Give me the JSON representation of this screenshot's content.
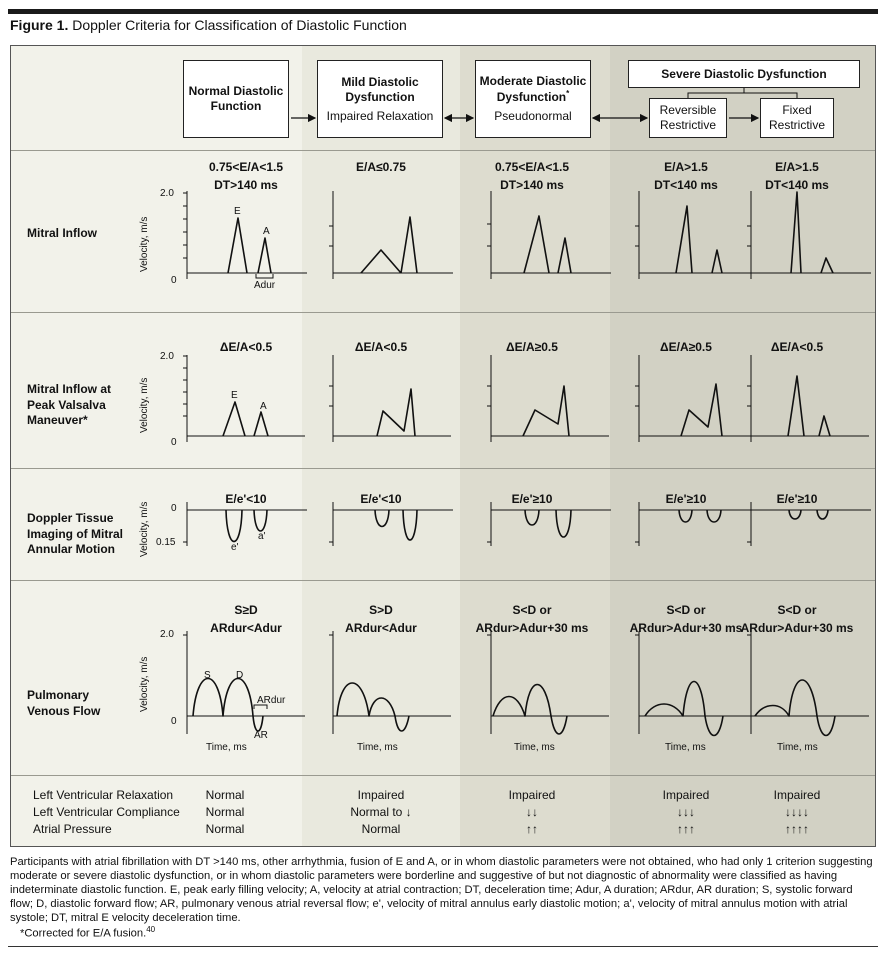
{
  "figure": {
    "label": "Figure 1.",
    "title": "Doppler Criteria for Classification of Diastolic Function"
  },
  "colors": {
    "col1": "#f2f2ea",
    "col2": "#e9e9de",
    "col3": "#dddccf",
    "col4": "#d2d1c4"
  },
  "headers": {
    "normal": "Normal Diastolic Function",
    "mild_title": "Mild Diastolic Dysfunction",
    "mild_sub": "Impaired Relaxation",
    "moderate_title": "Moderate Diastolic Dysfunction",
    "moderate_mark": "*",
    "moderate_sub": "Pseudonormal",
    "severe_title": "Severe Diastolic Dysfunction",
    "reversible": "Reversible Restrictive",
    "fixed": "Fixed Restrictive"
  },
  "rows": {
    "mitral_inflow": {
      "label": "Mitral Inflow",
      "criteria": [
        [
          "0.75<E/A<1.5",
          "DT>140 ms"
        ],
        [
          "E/A≤0.75"
        ],
        [
          "0.75<E/A<1.5",
          "DT>140 ms"
        ],
        [
          "E/A>1.5",
          "DT<140 ms"
        ],
        [
          "E/A>1.5",
          "DT<140 ms"
        ]
      ],
      "axis_max": "2.0",
      "axis_zero": "0",
      "ylabel": "Velocity, m/s",
      "peak_e": "E",
      "peak_a": "A",
      "adur": "Adur"
    },
    "valsalva": {
      "label": "Mitral Inflow at Peak Valsalva Maneuver*",
      "criteria": [
        "ΔE/A<0.5",
        "ΔE/A<0.5",
        "ΔE/A≥0.5",
        "ΔE/A≥0.5",
        "ΔE/A<0.5"
      ],
      "axis_max": "2.0",
      "axis_zero": "0",
      "ylabel": "Velocity, m/s",
      "peak_e": "E",
      "peak_a": "A"
    },
    "tissue": {
      "label": "Doppler Tissue Imaging of Mitral Annular Motion",
      "criteria": [
        "E/e'<10",
        "E/e'<10",
        "E/e'≥10",
        "E/e'≥10",
        "E/e'≥10"
      ],
      "axis_zero": "0",
      "axis_min": "0.15",
      "ylabel": "Velocity, m/s",
      "peak_e": "e'",
      "peak_a": "a'"
    },
    "pulmonary": {
      "label": "Pulmonary Venous Flow",
      "criteria": [
        [
          "S≥D",
          "ARdur<Adur"
        ],
        [
          "S>D",
          "ARdur<Adur"
        ],
        [
          "S<D or",
          "ARdur>Adur+30 ms"
        ],
        [
          "S<D or",
          "ARdur>Adur+30 ms"
        ],
        [
          "S<D or",
          "ARdur>Adur+30 ms"
        ]
      ],
      "axis_max": "2.0",
      "axis_zero": "0",
      "ylabel": "Velocity, m/s",
      "xlabel": "Time, ms",
      "s": "S",
      "d": "D",
      "ar": "AR",
      "ardur": "ARdur"
    }
  },
  "lv_table": {
    "labels": [
      "Left Ventricular Relaxation",
      "Left Ventricular Compliance",
      "Atrial Pressure"
    ],
    "values": [
      [
        "Normal",
        "Normal",
        "Normal"
      ],
      [
        "Impaired",
        "Normal to ↓",
        "Normal"
      ],
      [
        "Impaired",
        "↓↓",
        "↑↑"
      ],
      [
        "Impaired",
        "↓↓↓",
        "↑↑↑"
      ],
      [
        "Impaired",
        "↓↓↓↓",
        "↑↑↑↑"
      ]
    ]
  },
  "caption": "Participants with atrial fibrillation with DT >140 ms, other arrhythmia, fusion of E and A, or in whom diastolic parameters were not obtained, who had only 1 criterion suggesting moderate or severe diastolic dysfunction, or in whom diastolic parameters were borderline and suggestive of but not diagnostic of abnormality were classified as having indeterminate diastolic function. E, peak early filling velocity; A, velocity at atrial contraction; DT, deceleration time; Adur, A duration; ARdur, AR duration; S, systolic forward flow; D, diastolic forward flow; AR, pulmonary venous atrial reversal flow; e', velocity of mitral annulus early diastolic motion; a', velocity of mitral annulus motion with atrial systole; DT, mitral E velocity deceleration time.",
  "footnote": "*Corrected for E/A fusion.",
  "footnote_ref": "40"
}
